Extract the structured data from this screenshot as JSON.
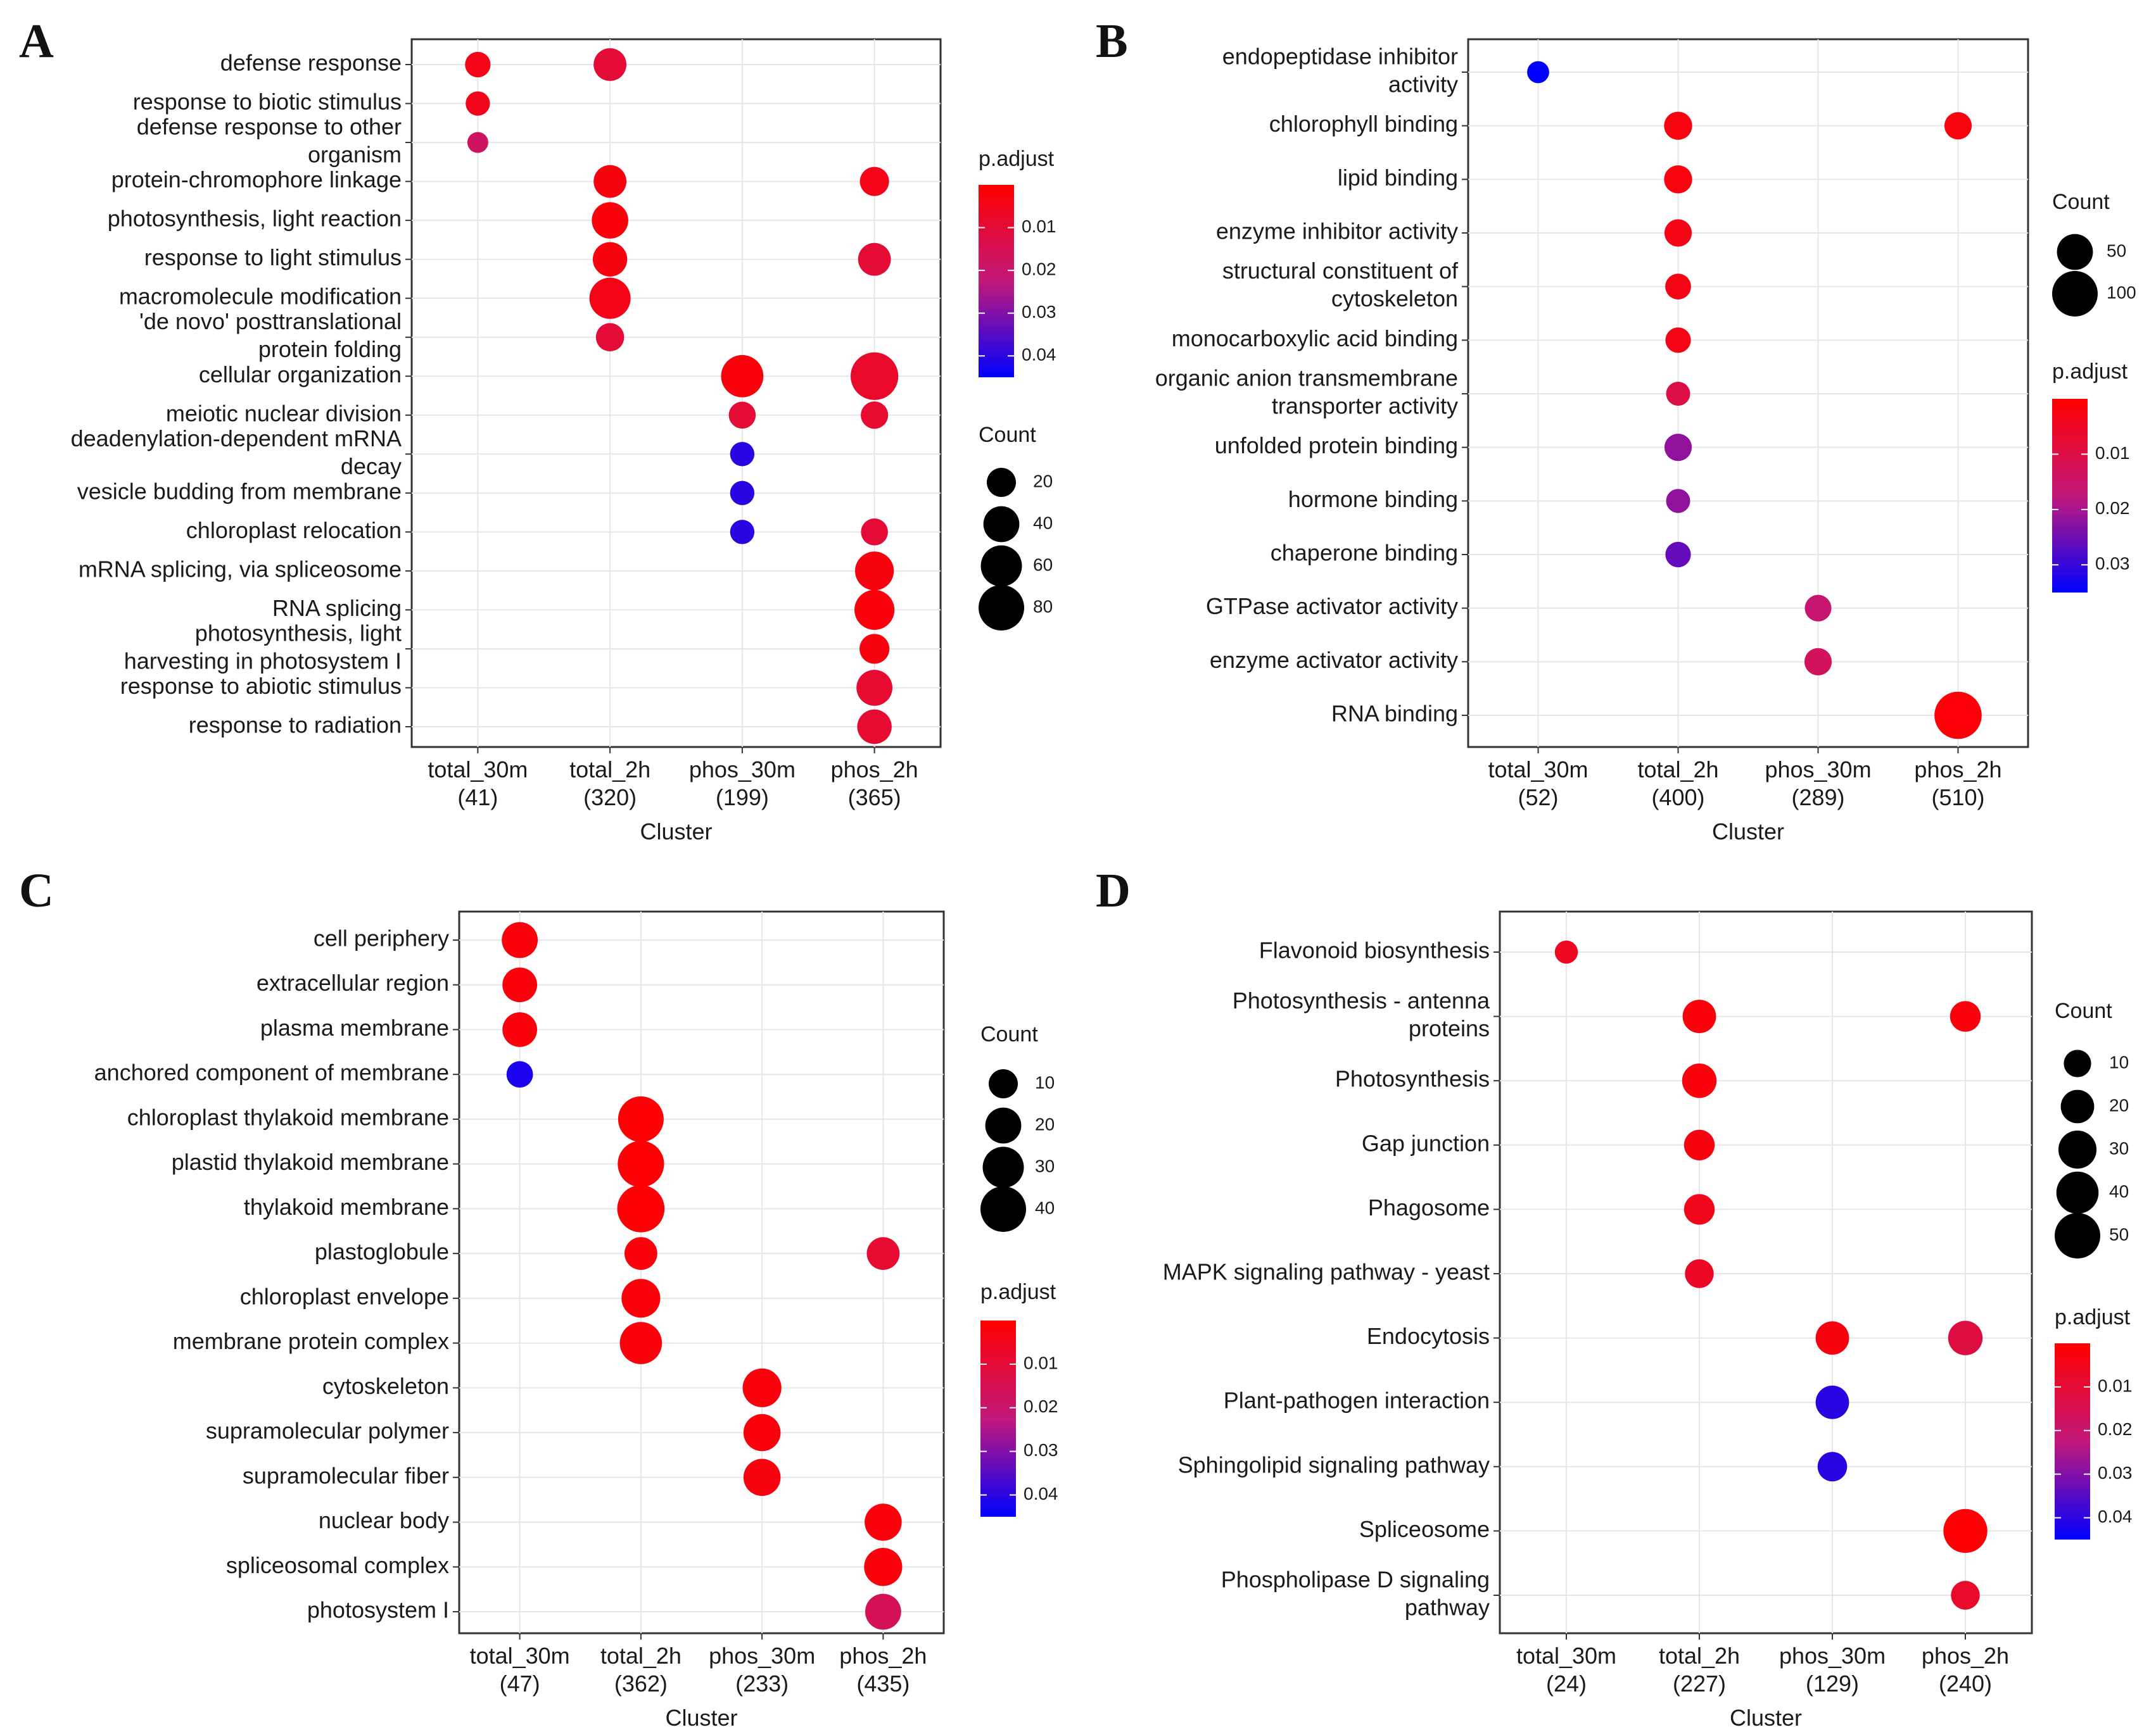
{
  "colors": {
    "high": "#ff0000",
    "low": "#0000ff",
    "grid": "#e6e6e6",
    "frame": "#333333",
    "background": "#ffffff"
  },
  "chart_data": [
    {
      "type": "scatter",
      "panel": "A",
      "xlabel": "Cluster",
      "categories": [
        "total_30m\n(41)",
        "total_2h\n(320)",
        "phos_30m\n(199)",
        "phos_2h\n(365)"
      ],
      "terms": [
        "defense response",
        "response to biotic stimulus",
        "defense response to other\norganism",
        "protein-chromophore linkage",
        "photosynthesis, light reaction",
        "response to light stimulus",
        "macromolecule modification",
        "'de novo' posttranslational\nprotein folding",
        "cellular organization",
        "meiotic nuclear division",
        "deadenylation-dependent mRNA\ndecay",
        "vesicle budding from membrane",
        "chloroplast relocation",
        "mRNA splicing, via spliceosome",
        "RNA splicing",
        "photosynthesis, light\nharvesting in photosystem I",
        "response to abiotic stimulus",
        "response to radiation"
      ],
      "points": [
        {
          "term": 0,
          "cluster": 0,
          "count": 12,
          "padj": 0.004
        },
        {
          "term": 0,
          "cluster": 1,
          "count": 30,
          "padj": 0.01
        },
        {
          "term": 1,
          "cluster": 0,
          "count": 10,
          "padj": 0.005
        },
        {
          "term": 2,
          "cluster": 0,
          "count": 5,
          "padj": 0.018
        },
        {
          "term": 3,
          "cluster": 1,
          "count": 30,
          "padj": 0.003
        },
        {
          "term": 3,
          "cluster": 3,
          "count": 20,
          "padj": 0.004
        },
        {
          "term": 4,
          "cluster": 1,
          "count": 42,
          "padj": 0.002
        },
        {
          "term": 5,
          "cluster": 1,
          "count": 35,
          "padj": 0.003
        },
        {
          "term": 5,
          "cluster": 3,
          "count": 30,
          "padj": 0.01
        },
        {
          "term": 6,
          "cluster": 1,
          "count": 60,
          "padj": 0.004
        },
        {
          "term": 7,
          "cluster": 1,
          "count": 18,
          "padj": 0.01
        },
        {
          "term": 8,
          "cluster": 2,
          "count": 65,
          "padj": 0.002
        },
        {
          "term": 8,
          "cluster": 3,
          "count": 90,
          "padj": 0.008
        },
        {
          "term": 9,
          "cluster": 2,
          "count": 15,
          "padj": 0.01
        },
        {
          "term": 9,
          "cluster": 3,
          "count": 16,
          "padj": 0.009
        },
        {
          "term": 10,
          "cluster": 2,
          "count": 10,
          "padj": 0.04
        },
        {
          "term": 11,
          "cluster": 2,
          "count": 10,
          "padj": 0.04
        },
        {
          "term": 12,
          "cluster": 2,
          "count": 10,
          "padj": 0.04
        },
        {
          "term": 12,
          "cluster": 3,
          "count": 15,
          "padj": 0.01
        },
        {
          "term": 13,
          "cluster": 3,
          "count": 50,
          "padj": 0.003
        },
        {
          "term": 14,
          "cluster": 3,
          "count": 55,
          "padj": 0.002
        },
        {
          "term": 15,
          "cluster": 3,
          "count": 22,
          "padj": 0.003
        },
        {
          "term": 16,
          "cluster": 3,
          "count": 40,
          "padj": 0.009
        },
        {
          "term": 17,
          "cluster": 3,
          "count": 35,
          "padj": 0.009
        }
      ],
      "count_legend": {
        "title": "Count",
        "values": [
          20,
          40,
          60,
          80
        ]
      },
      "padj_legend": {
        "title": "p.adjust",
        "ticks": [
          0.01,
          0.02,
          0.03,
          0.04
        ],
        "tick_labels": [
          "0.01",
          "0.02",
          "0.03",
          "0.04"
        ],
        "range": [
          0.0,
          0.045
        ]
      }
    },
    {
      "type": "scatter",
      "panel": "B",
      "xlabel": "Cluster",
      "categories": [
        "total_30m\n(52)",
        "total_2h\n(400)",
        "phos_30m\n(289)",
        "phos_2h\n(510)"
      ],
      "terms": [
        "endopeptidase inhibitor\nactivity",
        "chlorophyll binding",
        "lipid binding",
        "enzyme inhibitor activity",
        "structural constituent of\ncytoskeleton",
        "monocarboxylic acid binding",
        "organic anion transmembrane\ntransporter activity",
        "unfolded protein binding",
        "hormone binding",
        "chaperone binding",
        "GTPase activator activity",
        "enzyme activator activity",
        "RNA binding"
      ],
      "points": [
        {
          "term": 0,
          "cluster": 0,
          "count": 8,
          "padj": 0.036
        },
        {
          "term": 1,
          "cluster": 1,
          "count": 22,
          "padj": 0.002
        },
        {
          "term": 1,
          "cluster": 3,
          "count": 20,
          "padj": 0.002
        },
        {
          "term": 2,
          "cluster": 1,
          "count": 22,
          "padj": 0.002
        },
        {
          "term": 3,
          "cluster": 1,
          "count": 20,
          "padj": 0.003
        },
        {
          "term": 4,
          "cluster": 1,
          "count": 16,
          "padj": 0.003
        },
        {
          "term": 5,
          "cluster": 1,
          "count": 15,
          "padj": 0.003
        },
        {
          "term": 6,
          "cluster": 1,
          "count": 12,
          "padj": 0.01
        },
        {
          "term": 7,
          "cluster": 1,
          "count": 20,
          "padj": 0.022
        },
        {
          "term": 8,
          "cluster": 1,
          "count": 12,
          "padj": 0.022
        },
        {
          "term": 9,
          "cluster": 1,
          "count": 15,
          "padj": 0.026
        },
        {
          "term": 10,
          "cluster": 2,
          "count": 18,
          "padj": 0.016
        },
        {
          "term": 11,
          "cluster": 2,
          "count": 20,
          "padj": 0.013
        },
        {
          "term": 12,
          "cluster": 3,
          "count": 110,
          "padj": 0.001
        }
      ],
      "count_legend": {
        "title": "Count",
        "values": [
          50,
          100
        ]
      },
      "padj_legend": {
        "title": "p.adjust",
        "ticks": [
          0.01,
          0.02,
          0.03
        ],
        "tick_labels": [
          "0.01",
          "0.02",
          "0.03"
        ],
        "range": [
          0.0,
          0.035
        ]
      }
    },
    {
      "type": "scatter",
      "panel": "C",
      "xlabel": "Cluster",
      "categories": [
        "total_30m\n(47)",
        "total_2h\n(362)",
        "phos_30m\n(233)",
        "phos_2h\n(435)"
      ],
      "terms": [
        "cell periphery",
        "extracellular region",
        "plasma membrane",
        "anchored component of membrane",
        "chloroplast thylakoid membrane",
        "plastid thylakoid membrane",
        "thylakoid membrane",
        "plastoglobule",
        "chloroplast envelope",
        "membrane protein complex",
        "cytoskeleton",
        "supramolecular polymer",
        "supramolecular fiber",
        "nuclear body",
        "spliceosomal complex",
        "photosystem I"
      ],
      "points": [
        {
          "term": 0,
          "cluster": 0,
          "count": 20,
          "padj": 0.002
        },
        {
          "term": 1,
          "cluster": 0,
          "count": 18,
          "padj": 0.002
        },
        {
          "term": 2,
          "cluster": 0,
          "count": 18,
          "padj": 0.002
        },
        {
          "term": 3,
          "cluster": 0,
          "count": 7,
          "padj": 0.042
        },
        {
          "term": 4,
          "cluster": 1,
          "count": 40,
          "padj": 0.001
        },
        {
          "term": 5,
          "cluster": 1,
          "count": 42,
          "padj": 0.001
        },
        {
          "term": 6,
          "cluster": 1,
          "count": 44,
          "padj": 0.001
        },
        {
          "term": 7,
          "cluster": 1,
          "count": 15,
          "padj": 0.002
        },
        {
          "term": 7,
          "cluster": 3,
          "count": 15,
          "padj": 0.009
        },
        {
          "term": 8,
          "cluster": 1,
          "count": 25,
          "padj": 0.002
        },
        {
          "term": 9,
          "cluster": 1,
          "count": 32,
          "padj": 0.002
        },
        {
          "term": 10,
          "cluster": 2,
          "count": 25,
          "padj": 0.002
        },
        {
          "term": 11,
          "cluster": 2,
          "count": 22,
          "padj": 0.002
        },
        {
          "term": 12,
          "cluster": 2,
          "count": 22,
          "padj": 0.003
        },
        {
          "term": 13,
          "cluster": 3,
          "count": 22,
          "padj": 0.002
        },
        {
          "term": 14,
          "cluster": 3,
          "count": 24,
          "padj": 0.002
        },
        {
          "term": 15,
          "cluster": 3,
          "count": 20,
          "padj": 0.016
        }
      ],
      "count_legend": {
        "title": "Count",
        "values": [
          10,
          20,
          30,
          40
        ]
      },
      "padj_legend": {
        "title": "p.adjust",
        "ticks": [
          0.01,
          0.02,
          0.03,
          0.04
        ],
        "tick_labels": [
          "0.01",
          "0.02",
          "0.03",
          "0.04"
        ],
        "range": [
          0.0,
          0.045
        ]
      }
    },
    {
      "type": "scatter",
      "panel": "D",
      "xlabel": "Cluster",
      "categories": [
        "total_30m\n(24)",
        "total_2h\n(227)",
        "phos_30m\n(129)",
        "phos_2h\n(240)"
      ],
      "terms": [
        "Flavonoid biosynthesis",
        "Photosynthesis - antenna\nproteins",
        "Photosynthesis",
        "Gap junction",
        "Phagosome",
        "MAPK signaling pathway - yeast",
        "Endocytosis",
        "Plant-pathogen interaction",
        "Sphingolipid signaling pathway",
        "Spliceosome",
        "Phospholipase D signaling\npathway"
      ],
      "points": [
        {
          "term": 0,
          "cluster": 0,
          "count": 5,
          "padj": 0.006
        },
        {
          "term": 1,
          "cluster": 1,
          "count": 20,
          "padj": 0.002
        },
        {
          "term": 1,
          "cluster": 3,
          "count": 15,
          "padj": 0.002
        },
        {
          "term": 2,
          "cluster": 1,
          "count": 22,
          "padj": 0.002
        },
        {
          "term": 3,
          "cluster": 1,
          "count": 15,
          "padj": 0.003
        },
        {
          "term": 4,
          "cluster": 1,
          "count": 15,
          "padj": 0.005
        },
        {
          "term": 5,
          "cluster": 1,
          "count": 12,
          "padj": 0.007
        },
        {
          "term": 6,
          "cluster": 2,
          "count": 20,
          "padj": 0.003
        },
        {
          "term": 6,
          "cluster": 3,
          "count": 22,
          "padj": 0.012
        },
        {
          "term": 7,
          "cluster": 2,
          "count": 20,
          "padj": 0.04
        },
        {
          "term": 8,
          "cluster": 2,
          "count": 13,
          "padj": 0.04
        },
        {
          "term": 9,
          "cluster": 3,
          "count": 45,
          "padj": 0.001
        },
        {
          "term": 10,
          "cluster": 3,
          "count": 12,
          "padj": 0.008
        }
      ],
      "count_legend": {
        "title": "Count",
        "values": [
          10,
          20,
          30,
          40,
          50
        ]
      },
      "padj_legend": {
        "title": "p.adjust",
        "ticks": [
          0.01,
          0.02,
          0.03,
          0.04
        ],
        "tick_labels": [
          "0.01",
          "0.02",
          "0.03",
          "0.04"
        ],
        "range": [
          0.0,
          0.045
        ]
      }
    }
  ]
}
